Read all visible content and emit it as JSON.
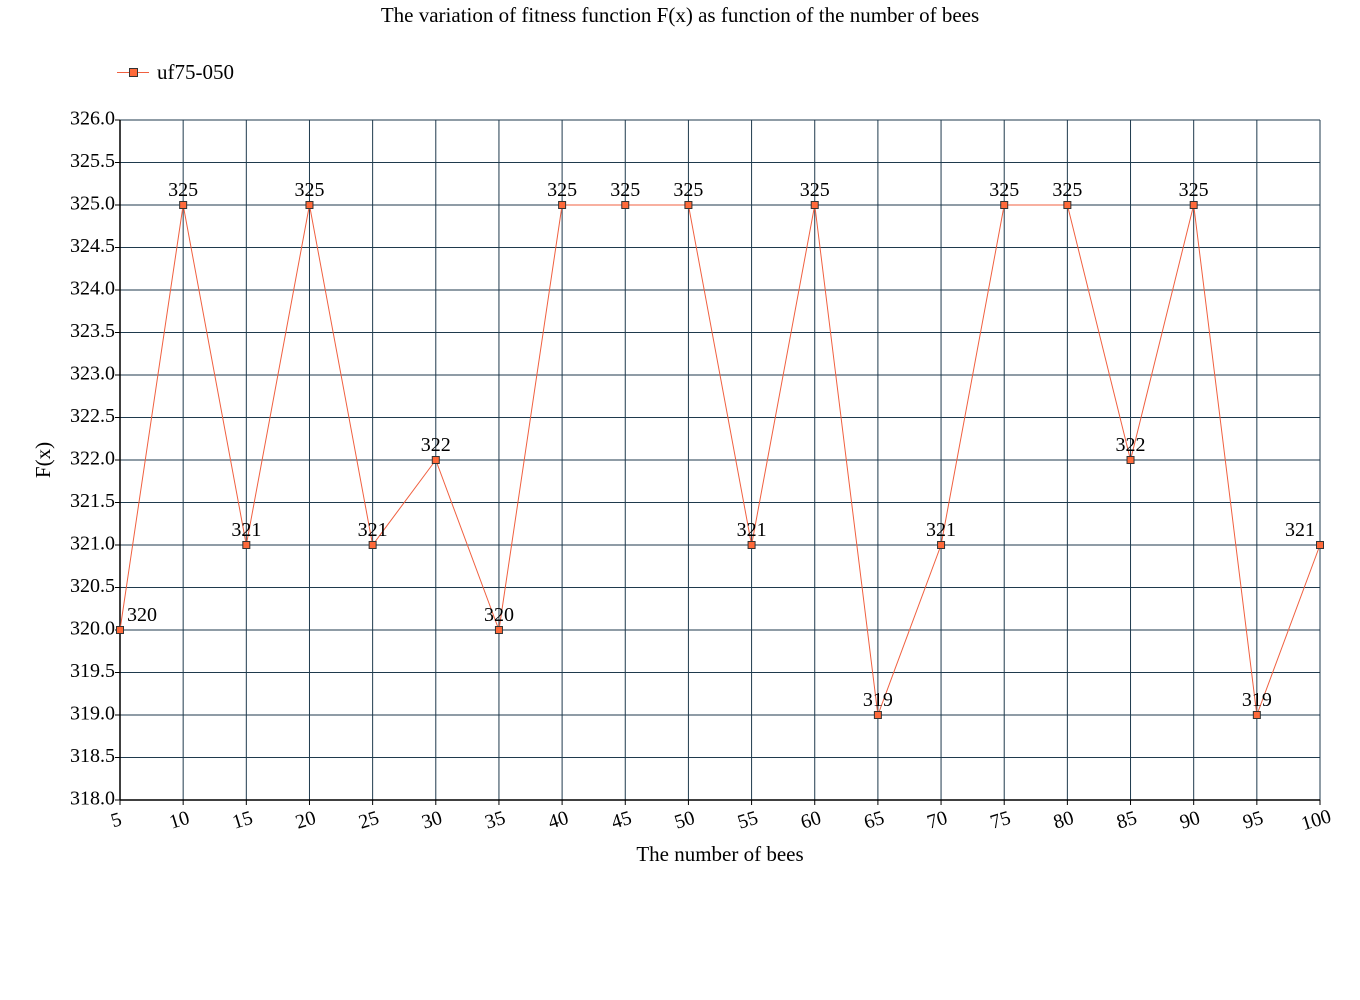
{
  "chart_data": {
    "type": "line",
    "title": "The variation of fitness function F(x) as function of the number of bees",
    "xlabel": "The number of bees",
    "ylabel": "F(x)",
    "x": [
      5,
      10,
      15,
      20,
      25,
      30,
      35,
      40,
      45,
      50,
      55,
      60,
      65,
      70,
      75,
      80,
      85,
      90,
      95,
      100
    ],
    "series": [
      {
        "name": "uf75-050",
        "values": [
          320,
          325,
          321,
          325,
          321,
          322,
          320,
          325,
          325,
          325,
          321,
          325,
          319,
          321,
          325,
          325,
          322,
          325,
          319,
          321
        ],
        "color": "#f06040",
        "marker_color": "#ff6a3a"
      }
    ],
    "ylim": [
      318.0,
      326.0
    ],
    "yticks": [
      "318.0",
      "318.5",
      "319.0",
      "319.5",
      "320.0",
      "320.5",
      "321.0",
      "321.5",
      "322.0",
      "322.5",
      "323.0",
      "323.5",
      "324.0",
      "324.5",
      "325.0",
      "325.5",
      "326.0"
    ],
    "xticks": [
      "5",
      "10",
      "15",
      "20",
      "25",
      "30",
      "35",
      "40",
      "45",
      "50",
      "55",
      "60",
      "65",
      "70",
      "75",
      "80",
      "85",
      "90",
      "95",
      "100"
    ],
    "data_labels": [
      "320",
      "325",
      "321",
      "325",
      "321",
      "322",
      "320",
      "325",
      "325",
      "325",
      "321",
      "325",
      "319",
      "321",
      "325",
      "325",
      "322",
      "325",
      "319",
      "321"
    ],
    "grid": true,
    "grid_color": "#1f3a4d",
    "legend_position": "top-left"
  }
}
